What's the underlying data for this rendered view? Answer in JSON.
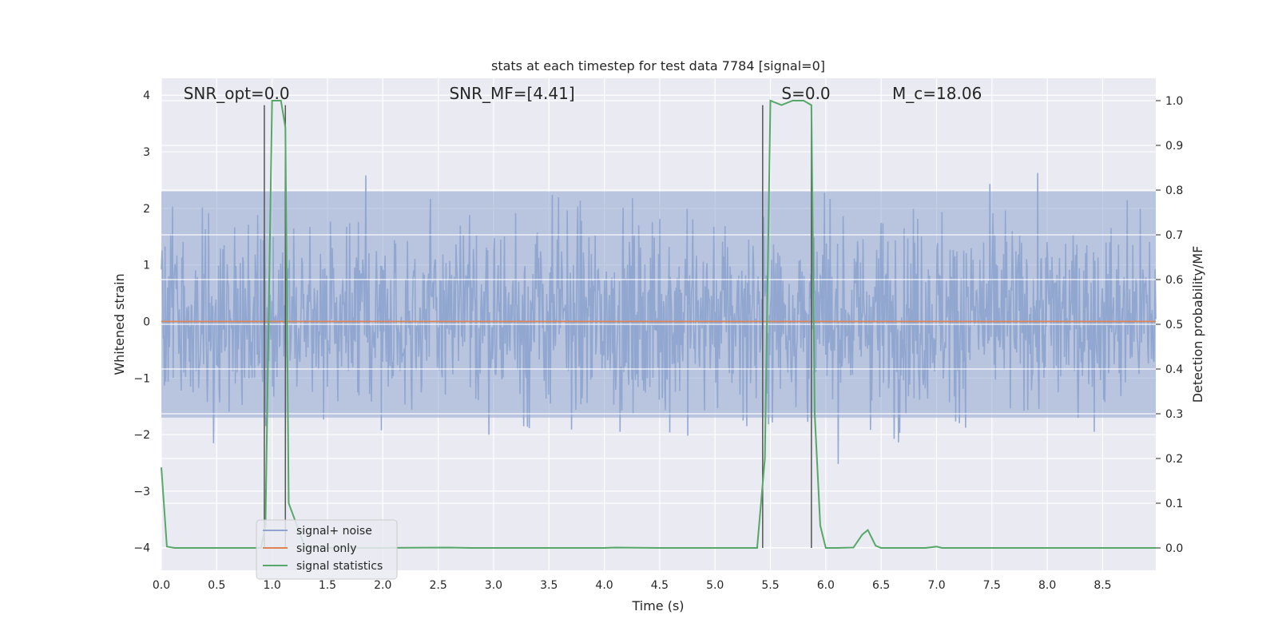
{
  "chart_data": {
    "type": "line",
    "title": "stats at each timestep for test data 7784 [signal=0]",
    "xlabel": "Time (s)",
    "ylabel_left": "Whitened strain",
    "ylabel_right": "Detection probability/MF",
    "xlim": [
      0,
      8.98
    ],
    "ylim_left": [
      -4.4,
      4.3
    ],
    "ylim_right": [
      -0.05,
      1.05
    ],
    "x_ticks": [
      "0.0",
      "0.5",
      "1.0",
      "1.5",
      "2.0",
      "2.5",
      "3.0",
      "3.5",
      "4.0",
      "4.5",
      "5.0",
      "5.5",
      "6.0",
      "6.5",
      "7.0",
      "7.5",
      "8.0",
      "8.5"
    ],
    "left_ticks": [
      "4",
      "3",
      "2",
      "1",
      "0",
      "−1",
      "−2",
      "−3",
      "−4"
    ],
    "right_ticks": [
      "1.0",
      "0.9",
      "0.8",
      "0.7",
      "0.6",
      "0.5",
      "0.4",
      "0.3",
      "0.2",
      "0.1",
      "0.0"
    ],
    "grid": true,
    "annotations": [
      {
        "text": "SNR_opt=0.0",
        "x": 0.2
      },
      {
        "text": "SNR_MF=[4.41]",
        "x": 2.6
      },
      {
        "text": "S=0.0",
        "x": 5.6
      },
      {
        "text": "M_c=18.06",
        "x": 6.6
      }
    ],
    "legend": {
      "placement": "lower-left",
      "entries": [
        "signal+ noise",
        "signal only",
        "signal statistics"
      ]
    },
    "series": [
      {
        "name": "signal+ noise",
        "color": "#8fa5cf",
        "axis": "left",
        "description_range": [
          -4.0,
          3.85
        ],
        "band": [
          -1.7,
          2.3
        ]
      },
      {
        "name": "signal only",
        "color": "#dd8452",
        "axis": "left",
        "x": [
          0,
          8.98
        ],
        "y": [
          0,
          0
        ]
      },
      {
        "name": "signal statistics",
        "color": "#55a868",
        "axis": "right",
        "x": [
          0.0,
          0.05,
          0.12,
          0.3,
          0.9,
          0.94,
          1.0,
          1.08,
          1.12,
          1.15,
          1.3,
          2.0,
          2.6,
          2.8,
          3.5,
          4.0,
          4.1,
          4.5,
          5.0,
          5.38,
          5.45,
          5.5,
          5.6,
          5.7,
          5.8,
          5.87,
          5.9,
          5.95,
          6.0,
          6.1,
          6.25,
          6.33,
          6.38,
          6.45,
          6.5,
          6.6,
          6.9,
          7.0,
          7.05,
          7.5,
          8.0,
          8.5,
          8.98
        ],
        "y": [
          0.18,
          0.003,
          0.0,
          0.0,
          0.0,
          0.05,
          1.0,
          1.0,
          0.94,
          0.1,
          0.0,
          0.0,
          0.001,
          0.0,
          0.0,
          0.0,
          0.001,
          0.0,
          0.0,
          0.0,
          0.2,
          1.0,
          0.99,
          1.0,
          1.0,
          0.99,
          0.3,
          0.05,
          0.0,
          0.0,
          0.001,
          0.03,
          0.04,
          0.005,
          0.0,
          0.0,
          0.0,
          0.003,
          0.0,
          0.0,
          0.0,
          0.0,
          0.0
        ]
      }
    ],
    "vertical_markers": [
      {
        "x": 0.93,
        "y_top": 0.99
      },
      {
        "x": 1.12,
        "y_top": 0.99
      },
      {
        "x": 5.43,
        "y_top": 0.99
      },
      {
        "x": 5.87,
        "y_top": 0.99
      }
    ]
  }
}
